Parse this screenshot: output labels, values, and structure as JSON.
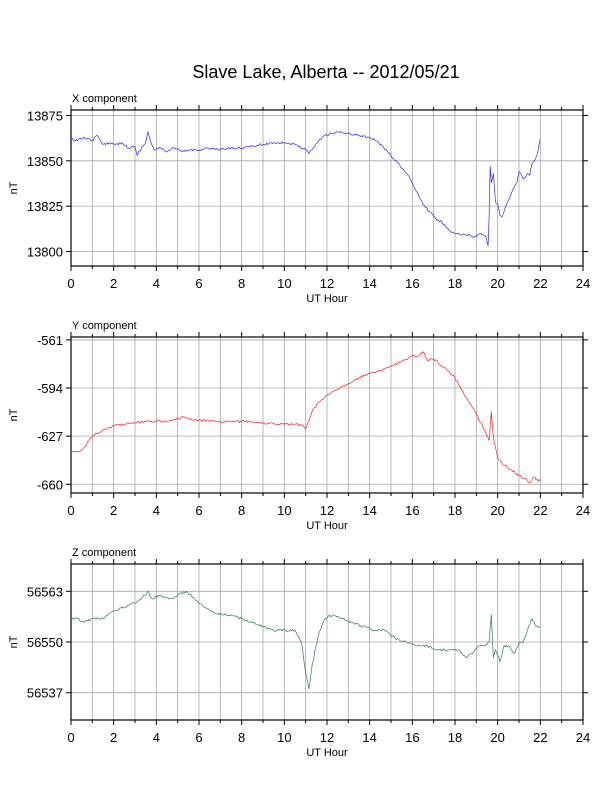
{
  "title": "Slave Lake, Alberta -- 2012/05/21",
  "colors": {
    "x_series": "#2a2aff",
    "y_series": "#ff2020",
    "z_series": "#2e7d4a",
    "grid": "#a8a8a8",
    "frame": "#000000"
  },
  "chart_data": [
    {
      "type": "line",
      "title": "X component",
      "xlabel": "UT Hour",
      "ylabel": "nT",
      "xlim": [
        0,
        24
      ],
      "ylim": [
        13792,
        13878
      ],
      "xticks": [
        0,
        2,
        4,
        6,
        8,
        10,
        12,
        14,
        16,
        18,
        20,
        22,
        24
      ],
      "yticks": [
        13800,
        13825,
        13850,
        13875
      ],
      "grid": true,
      "series": [
        {
          "color": "#2a2aff",
          "x": [
            0.0,
            0.3,
            0.6,
            1.0,
            1.2,
            1.5,
            1.8,
            2.1,
            2.4,
            2.7,
            3.0,
            3.1,
            3.3,
            3.5,
            3.6,
            3.75,
            3.9,
            4.2,
            4.5,
            4.8,
            5.2,
            5.6,
            6.0,
            6.4,
            7.0,
            7.5,
            8.0,
            8.5,
            9.0,
            9.5,
            10.0,
            10.5,
            11.0,
            11.15,
            11.3,
            11.6,
            11.9,
            12.2,
            12.5,
            13.0,
            13.5,
            14.0,
            14.3,
            14.6,
            15.0,
            15.3,
            15.6,
            15.9,
            16.2,
            16.5,
            16.8,
            17.1,
            17.4,
            17.7,
            18.0,
            18.3,
            18.6,
            18.9,
            19.2,
            19.45,
            19.55,
            19.6,
            19.65,
            19.7,
            19.8,
            19.9,
            20.0,
            20.1,
            20.2,
            20.3,
            20.5,
            20.7,
            20.9,
            21.0,
            21.2,
            21.4,
            21.5,
            21.6,
            21.8,
            21.9,
            22.0
          ],
          "y": [
            13862,
            13861,
            13863,
            13861,
            13864,
            13859,
            13860,
            13859,
            13860,
            13857,
            13858,
            13853,
            13857,
            13860,
            13866,
            13860,
            13856,
            13857,
            13855,
            13857,
            13855,
            13856,
            13856,
            13857,
            13856,
            13857,
            13857,
            13858,
            13859,
            13860,
            13860,
            13859,
            13856,
            13854,
            13856,
            13861,
            13864,
            13865,
            13866,
            13865,
            13864,
            13863,
            13861,
            13858,
            13853,
            13849,
            13845,
            13840,
            13833,
            13826,
            13822,
            13818,
            13816,
            13812,
            13810,
            13809,
            13809,
            13808,
            13810,
            13808,
            13803,
            13820,
            13847,
            13838,
            13843,
            13827,
            13826,
            13820,
            13819,
            13822,
            13828,
            13834,
            13838,
            13844,
            13840,
            13843,
            13842,
            13848,
            13852,
            13856,
            13862
          ]
        }
      ]
    },
    {
      "type": "line",
      "title": "Y component",
      "xlabel": "UT Hour",
      "ylabel": "nT",
      "xlim": [
        0,
        24
      ],
      "ylim": [
        -666,
        -559
      ],
      "xticks": [
        0,
        2,
        4,
        6,
        8,
        10,
        12,
        14,
        16,
        18,
        20,
        22,
        24
      ],
      "yticks": [
        -561,
        -594,
        -627,
        -660
      ],
      "grid": true,
      "series": [
        {
          "color": "#ff2020",
          "x": [
            0.0,
            0.3,
            0.6,
            1.0,
            1.5,
            2.0,
            2.5,
            3.0,
            3.5,
            4.0,
            4.5,
            5.0,
            5.3,
            5.6,
            6.0,
            6.5,
            7.0,
            7.5,
            8.0,
            8.5,
            9.0,
            9.5,
            10.0,
            10.5,
            10.9,
            11.0,
            11.1,
            11.3,
            11.6,
            12.0,
            12.5,
            13.0,
            13.5,
            14.0,
            14.5,
            15.0,
            15.5,
            16.0,
            16.3,
            16.5,
            16.7,
            17.0,
            17.5,
            18.0,
            18.5,
            19.0,
            19.3,
            19.6,
            19.7,
            19.8,
            19.9,
            20.0,
            20.3,
            20.6,
            21.0,
            21.3,
            21.5,
            21.7,
            21.9,
            22.0
          ],
          "y": [
            -638,
            -638,
            -635,
            -627,
            -623,
            -620,
            -619,
            -618,
            -617,
            -617,
            -617,
            -615,
            -614,
            -615,
            -616,
            -616,
            -617,
            -617,
            -617,
            -617,
            -618,
            -618,
            -619,
            -619,
            -620,
            -622,
            -618,
            -610,
            -604,
            -599,
            -595,
            -591,
            -587,
            -584,
            -582,
            -579,
            -576,
            -572,
            -572,
            -569,
            -575,
            -574,
            -580,
            -587,
            -600,
            -612,
            -620,
            -630,
            -610,
            -628,
            -635,
            -642,
            -647,
            -650,
            -654,
            -656,
            -659,
            -655,
            -658,
            -656
          ]
        }
      ]
    },
    {
      "type": "line",
      "title": "Z component",
      "xlabel": "UT Hour",
      "ylabel": "nT",
      "xlim": [
        0,
        24
      ],
      "ylim": [
        56530,
        56570
      ],
      "xticks": [
        0,
        2,
        4,
        6,
        8,
        10,
        12,
        14,
        16,
        18,
        20,
        22,
        24
      ],
      "yticks": [
        56537,
        56550,
        56563
      ],
      "grid": true,
      "series": [
        {
          "color": "#2e7d4a",
          "x": [
            0.0,
            0.3,
            0.6,
            1.0,
            1.5,
            2.0,
            2.5,
            3.0,
            3.3,
            3.6,
            3.8,
            4.2,
            4.6,
            5.0,
            5.4,
            5.8,
            6.2,
            6.6,
            7.0,
            7.5,
            8.0,
            8.5,
            9.0,
            9.5,
            10.0,
            10.5,
            10.8,
            11.0,
            11.15,
            11.3,
            11.6,
            11.9,
            12.3,
            12.7,
            13.2,
            13.7,
            14.2,
            14.7,
            15.2,
            15.7,
            16.2,
            16.7,
            17.2,
            17.7,
            18.2,
            18.5,
            18.8,
            19.1,
            19.4,
            19.6,
            19.7,
            19.8,
            19.9,
            20.1,
            20.3,
            20.5,
            20.8,
            21.0,
            21.2,
            21.4,
            21.6,
            21.8,
            22.0
          ],
          "y": [
            56556,
            56556,
            56555,
            56556,
            56556,
            56558,
            56559,
            56560,
            56561,
            56563,
            56561,
            56562,
            56561,
            56562,
            56563,
            56561,
            56559,
            56558,
            56557,
            56557,
            56556,
            56555,
            56554,
            56553,
            56553,
            56553,
            56550,
            56542,
            56538,
            56544,
            56552,
            56556,
            56557,
            56556,
            56555,
            56554,
            56553,
            56553,
            56551,
            56550,
            56549,
            56549,
            56548,
            56548,
            56548,
            56546,
            56547,
            56549,
            56549,
            56550,
            56557,
            56546,
            56548,
            56545,
            56549,
            56549,
            56547,
            56550,
            56550,
            56553,
            56556,
            56554,
            56554
          ]
        }
      ]
    }
  ]
}
